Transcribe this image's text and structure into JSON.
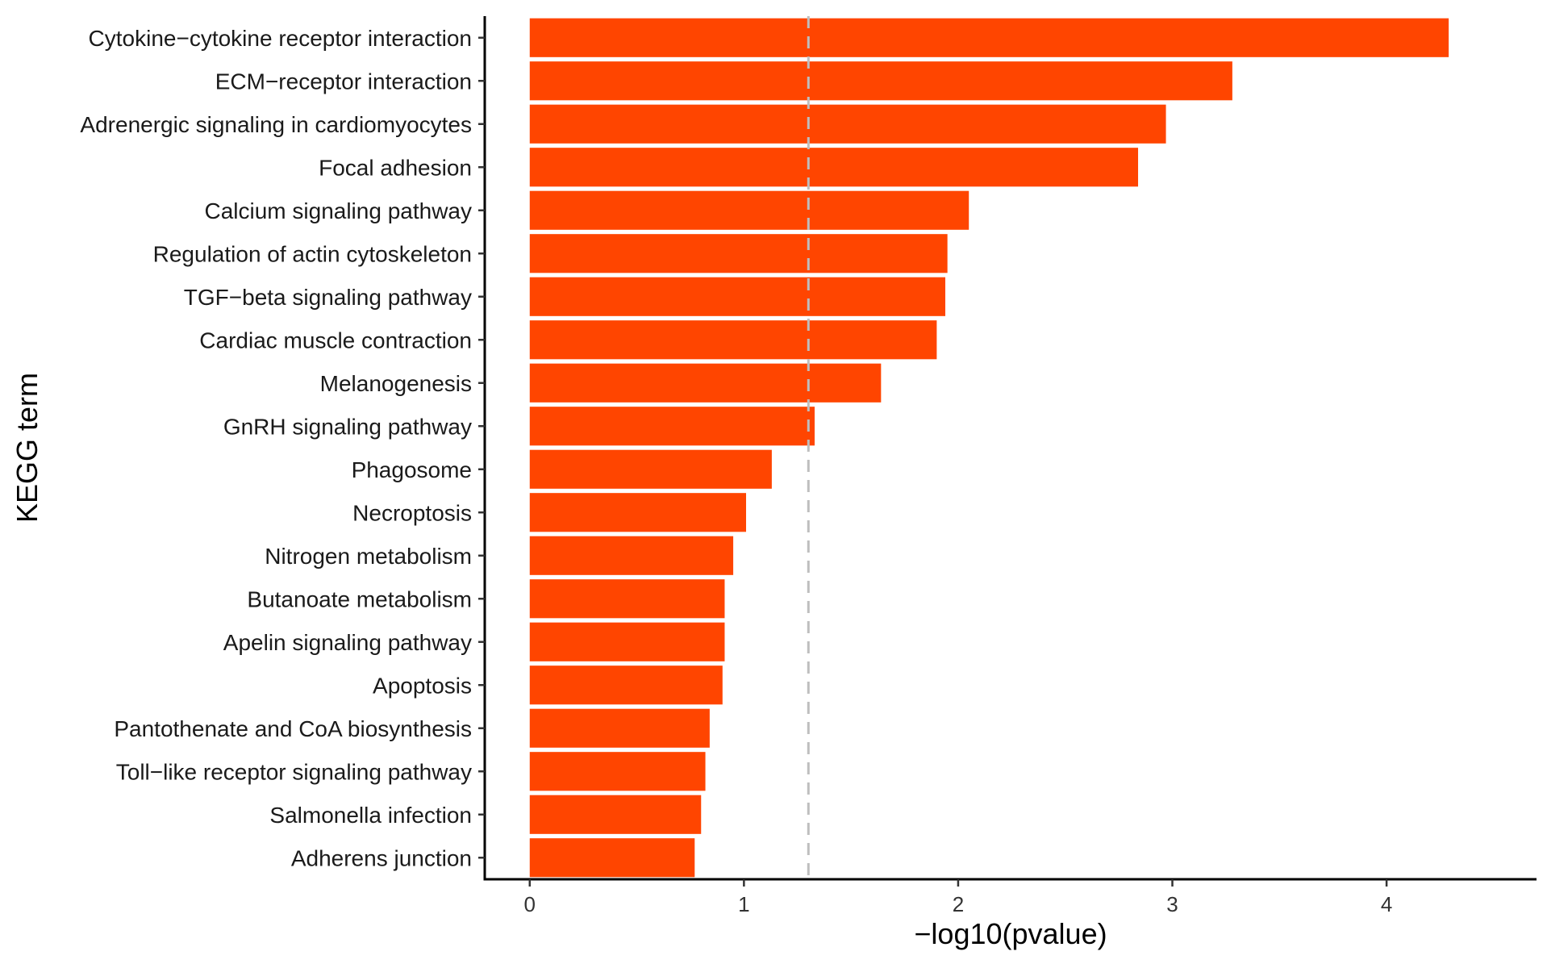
{
  "chart_data": {
    "type": "bar",
    "orientation": "horizontal",
    "xlabel": "−log10(pvalue)",
    "ylabel": "KEGG term",
    "xlim": [
      -0.21,
      4.7
    ],
    "xticks": [
      0,
      1,
      2,
      3,
      4
    ],
    "grid": false,
    "legend": "none",
    "bar_color": "#FF4500",
    "reference_line": {
      "x": 1.301,
      "style": "dashed",
      "color": "#BEBEBE"
    },
    "categories": [
      "Cytokine−cytokine receptor interaction",
      "ECM−receptor interaction",
      "Adrenergic signaling in cardiomyocytes",
      "Focal adhesion",
      "Calcium signaling pathway",
      "Regulation of actin cytoskeleton",
      "TGF−beta signaling pathway",
      "Cardiac muscle contraction",
      "Melanogenesis",
      "GnRH signaling pathway",
      "Phagosome",
      "Necroptosis",
      "Nitrogen metabolism",
      "Butanoate metabolism",
      "Apelin signaling pathway",
      "Apoptosis",
      "Pantothenate and CoA biosynthesis",
      "Toll−like receptor signaling pathway",
      "Salmonella infection",
      "Adherens junction"
    ],
    "values": [
      4.29,
      3.28,
      2.97,
      2.84,
      2.05,
      1.95,
      1.94,
      1.9,
      1.64,
      1.33,
      1.13,
      1.01,
      0.95,
      0.91,
      0.91,
      0.9,
      0.84,
      0.82,
      0.8,
      0.77
    ]
  }
}
